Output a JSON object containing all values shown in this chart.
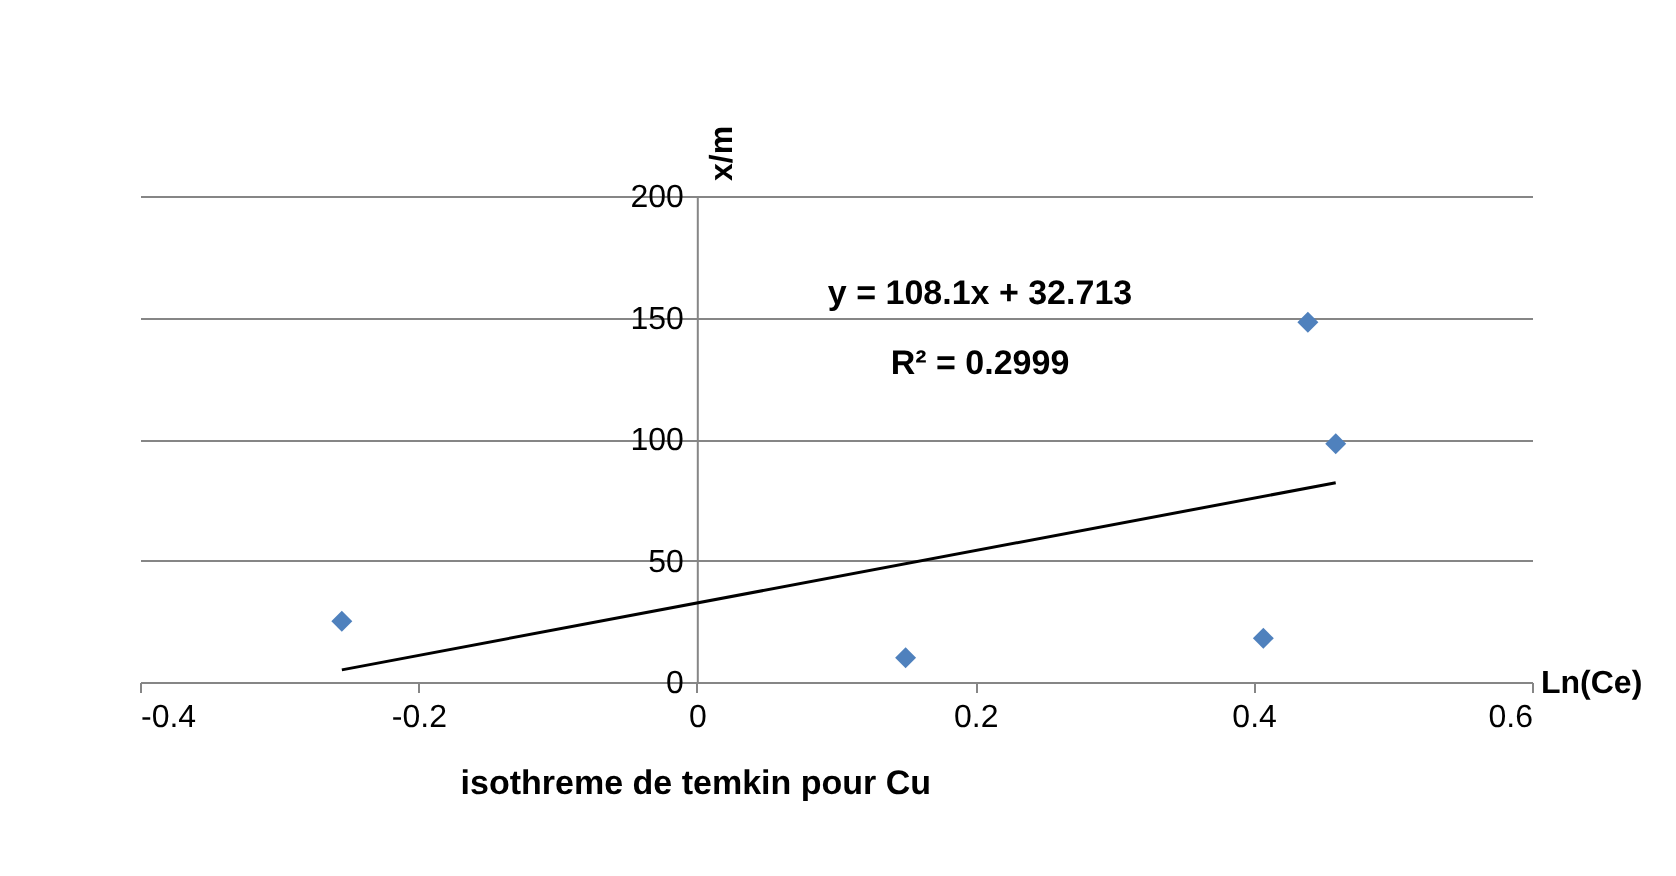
{
  "chart_data": {
    "type": "scatter",
    "title": "isothreme de temkin pour Cu",
    "xlabel": "Ln(Ce)",
    "ylabel": "x/m",
    "annotations": [
      "y = 108.1x + 32.713",
      "R² = 0.2999"
    ],
    "series": [
      {
        "color": "#4f81bd",
        "x": [
          -0.255,
          0.15,
          0.407,
          0.439,
          0.459
        ],
        "values": [
          25,
          10,
          18,
          148,
          98
        ]
      },
      {
        "type": "line",
        "color": "#000000",
        "marker": "none",
        "x": [
          -0.255,
          0.459
        ],
        "values": [
          5,
          82
        ]
      }
    ],
    "xlim": [
      -0.4,
      0.6
    ],
    "xticks": [
      -0.4,
      -0.2,
      0,
      0.2,
      0.4,
      0.6
    ],
    "ylim": [
      0,
      200
    ],
    "yticks": [
      0,
      50,
      100,
      150,
      200
    ],
    "grid": "y",
    "marker": "diamond"
  }
}
